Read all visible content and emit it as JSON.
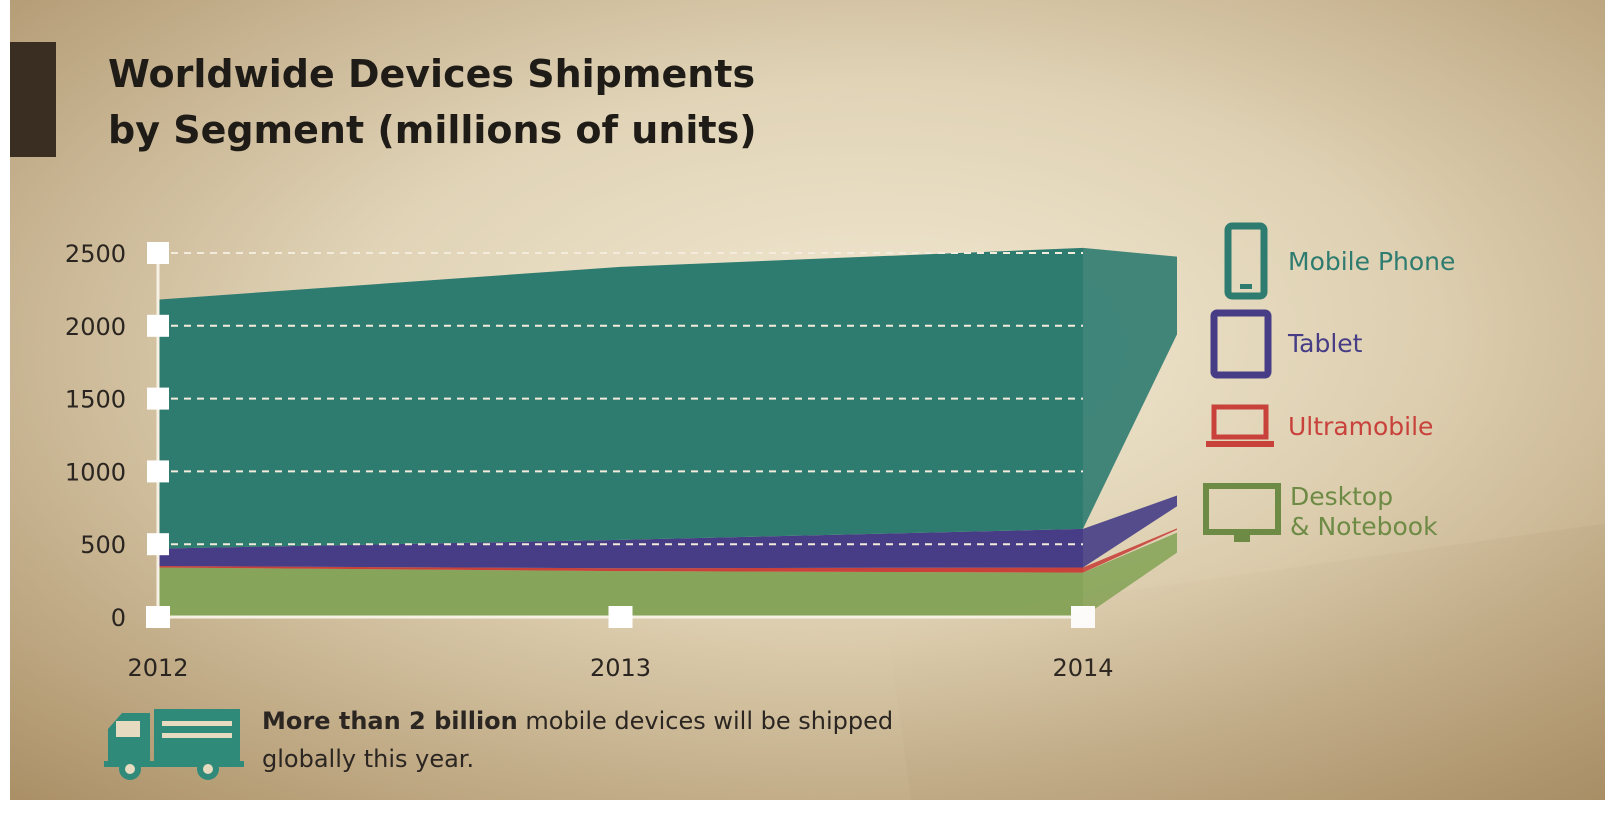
{
  "colors": {
    "mobile_phone": "#2e7b70",
    "tablet": "#463d86",
    "ultramobile": "#c8423b",
    "desktop_notebook": "#87a55a",
    "truck": "#2f8a7a"
  },
  "chart_data": {
    "type": "area",
    "title": "Worldwide Devices Shipments\nby Segment (millions of units)",
    "x": [
      "2012",
      "2013",
      "2014"
    ],
    "ylim": [
      0,
      2500
    ],
    "yticks": [
      0,
      500,
      1000,
      1500,
      2000,
      2500
    ],
    "stacked": true,
    "grid": true,
    "legend_position": "right",
    "series": [
      {
        "name": "Desktop\n& Notebook",
        "values": [
          340,
          315,
          305
        ],
        "color_key": "desktop_notebook"
      },
      {
        "name": "Ultramobile",
        "values": [
          10,
          20,
          35
        ],
        "color_key": "ultramobile"
      },
      {
        "name": "Tablet",
        "values": [
          120,
          195,
          265
        ],
        "color_key": "tablet"
      },
      {
        "name": "Mobile Phone",
        "values": [
          1710,
          1875,
          1930
        ],
        "color_key": "mobile_phone"
      }
    ]
  },
  "legend": [
    {
      "label": "Mobile Phone",
      "icon": "mobile-phone-icon",
      "color_key": "mobile_phone"
    },
    {
      "label": "Tablet",
      "icon": "tablet-icon",
      "color_key": "tablet"
    },
    {
      "label": "Ultramobile",
      "icon": "ultramobile-laptop-icon",
      "color_key": "ultramobile"
    },
    {
      "label": "Desktop\n& Notebook",
      "icon": "desktop-monitor-icon",
      "color_key": "desktop_notebook"
    }
  ],
  "footer": {
    "bold": "More than 2 billion",
    "rest": " mobile devices will be shipped globally this year.",
    "icon": "delivery-truck-icon"
  }
}
